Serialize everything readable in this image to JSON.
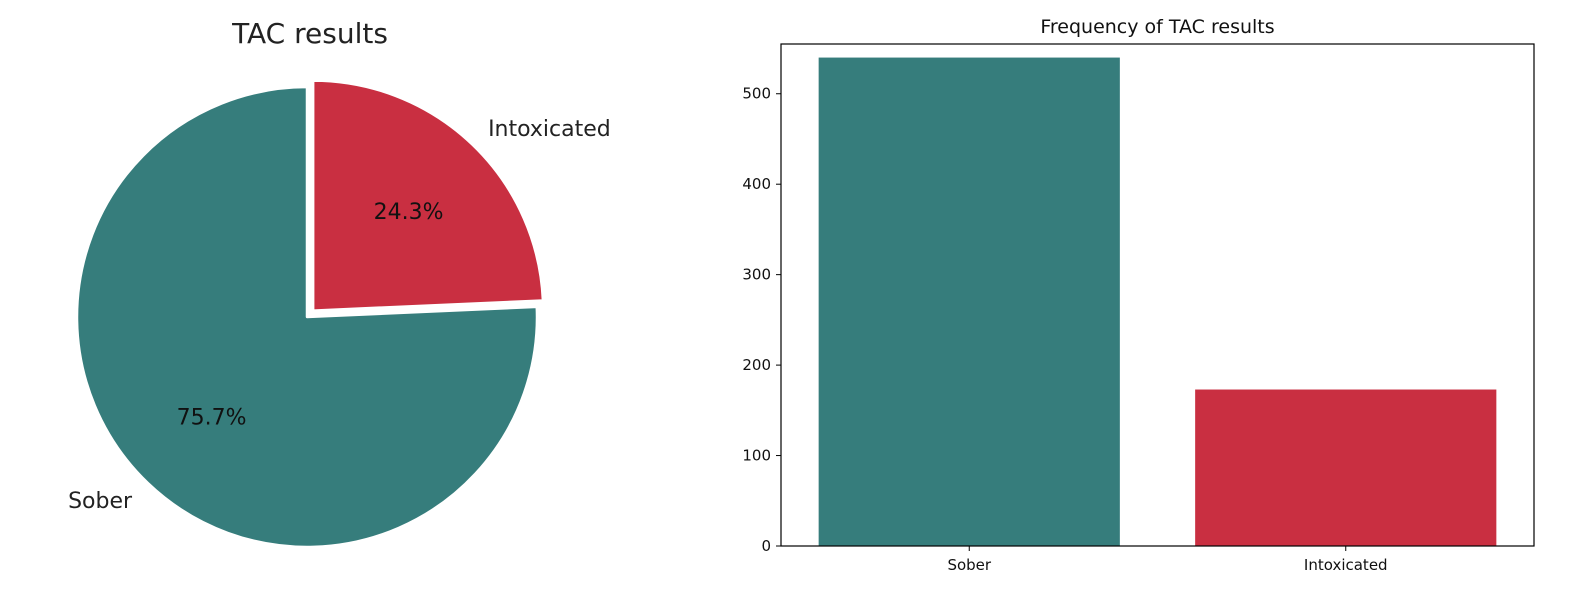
{
  "chart_data": [
    {
      "type": "pie",
      "title": "TAC results",
      "labels": [
        "Sober",
        "Intoxicated"
      ],
      "values": [
        75.7,
        24.3
      ],
      "value_labels": [
        "75.7%",
        "24.3%"
      ],
      "colors": [
        "#367d7c",
        "#c92f41"
      ],
      "exploded": [
        "Intoxicated"
      ],
      "start_angle_deg": 90,
      "direction": "counterclockwise"
    },
    {
      "type": "bar",
      "title": "Frequency of TAC results",
      "xlabel": "",
      "ylabel": "",
      "categories": [
        "Sober",
        "Intoxicated"
      ],
      "values": [
        540,
        173
      ],
      "colors": [
        "#367d7c",
        "#c92f41"
      ],
      "ylim": [
        0,
        555
      ],
      "yticks": [
        0,
        100,
        200,
        300,
        400,
        500
      ],
      "grid": false
    }
  ]
}
